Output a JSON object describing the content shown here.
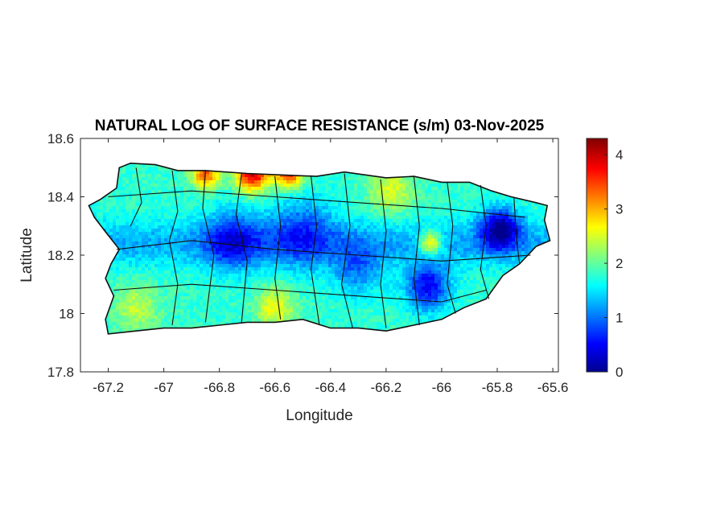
{
  "chart_data": {
    "type": "heatmap",
    "title": "NATURAL LOG OF SURFACE RESISTANCE (s/m) 03-Nov-2025",
    "xlabel": "Longitude",
    "ylabel": "Latitude",
    "xlim": [
      -67.3,
      -65.58
    ],
    "ylim": [
      17.8,
      18.6
    ],
    "xticks": [
      -67.2,
      -67,
      -66.8,
      -66.6,
      -66.4,
      -66.2,
      -66,
      -65.8,
      -65.6
    ],
    "xtick_labels": [
      "-67.2",
      "-67",
      "-66.8",
      "-66.6",
      "-66.4",
      "-66.2",
      "-66",
      "-65.8",
      "-65.6"
    ],
    "yticks": [
      17.8,
      18,
      18.2,
      18.4,
      18.6
    ],
    "ytick_labels": [
      "17.8",
      "18",
      "18.2",
      "18.4",
      "18.6"
    ],
    "colorbar": {
      "colormap": "jet",
      "range": [
        0,
        4.3
      ],
      "ticks": [
        0,
        1,
        2,
        3,
        4
      ],
      "tick_labels": [
        "0",
        "1",
        "2",
        "3",
        "4"
      ]
    },
    "colormap_stops": [
      "#00008f",
      "#0000ff",
      "#00ffff",
      "#ffff00",
      "#ff0000",
      "#800000"
    ],
    "grid": false,
    "legend": "none",
    "region": "Puerto Rico",
    "field_features": [
      {
        "lon": -65.79,
        "lat": 18.29,
        "value": 0.2,
        "radius": 0.07
      },
      {
        "lon": -66.05,
        "lat": 18.09,
        "value": 0.5,
        "radius": 0.08
      },
      {
        "lon": -66.75,
        "lat": 18.25,
        "value": 0.8,
        "radius": 0.1
      },
      {
        "lon": -66.5,
        "lat": 18.28,
        "value": 1.0,
        "radius": 0.12
      },
      {
        "lon": -66.3,
        "lat": 18.15,
        "value": 1.1,
        "radius": 0.09
      },
      {
        "lon": -66.68,
        "lat": 18.48,
        "value": 4.0,
        "radius": 0.06
      },
      {
        "lon": -66.55,
        "lat": 18.48,
        "value": 3.6,
        "radius": 0.05
      },
      {
        "lon": -66.85,
        "lat": 18.48,
        "value": 3.4,
        "radius": 0.05
      },
      {
        "lon": -66.04,
        "lat": 18.24,
        "value": 3.2,
        "radius": 0.04
      },
      {
        "lon": -66.6,
        "lat": 18.02,
        "value": 2.6,
        "radius": 0.07
      },
      {
        "lon": -67.1,
        "lat": 18.02,
        "value": 2.4,
        "radius": 0.08
      },
      {
        "lon": -66.18,
        "lat": 18.42,
        "value": 2.5,
        "radius": 0.08
      }
    ],
    "base_value": 1.8
  }
}
